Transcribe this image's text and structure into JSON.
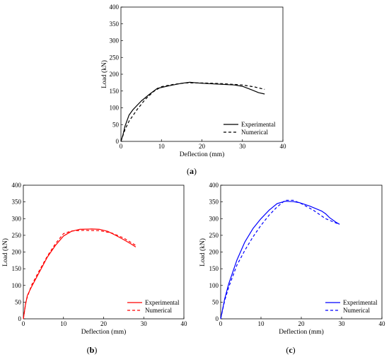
{
  "chart_data": [
    {
      "panel": "a",
      "caption": "(a)",
      "caption_letter": "a",
      "type": "line",
      "xlabel": "Deflection (mm)",
      "ylabel": "Load (kN)",
      "xlim": [
        0,
        40
      ],
      "ylim": [
        0,
        400
      ],
      "xticks": [
        "0",
        "10",
        "20",
        "30",
        "40"
      ],
      "yticks": [
        "0",
        "50",
        "100",
        "150",
        "200",
        "250",
        "300",
        "350",
        "400"
      ],
      "grid": false,
      "legend_position": "bottom-right",
      "series": [
        {
          "name": "Experimental",
          "style": "solid",
          "color": "#000000",
          "points": [
            [
              0,
              0
            ],
            [
              0.5,
              20
            ],
            [
              1,
              45
            ],
            [
              2,
              78
            ],
            [
              3,
              95
            ],
            [
              5,
              120
            ],
            [
              7,
              140
            ],
            [
              9,
              158
            ],
            [
              12,
              166
            ],
            [
              15,
              173
            ],
            [
              17,
              176
            ],
            [
              20,
              173
            ],
            [
              25,
              170
            ],
            [
              28,
              168
            ],
            [
              30,
              164
            ],
            [
              32,
              155
            ],
            [
              34,
              145
            ],
            [
              35.5,
              141
            ]
          ]
        },
        {
          "name": "Numerical",
          "style": "dashed",
          "color": "#000000",
          "points": [
            [
              0,
              0
            ],
            [
              1,
              35
            ],
            [
              2,
              60
            ],
            [
              4,
              95
            ],
            [
              6,
              125
            ],
            [
              8,
              148
            ],
            [
              10,
              163
            ],
            [
              13,
              170
            ],
            [
              16,
              174
            ],
            [
              20,
              174
            ],
            [
              25,
              172
            ],
            [
              30,
              168
            ],
            [
              33,
              162
            ],
            [
              35.5,
              155
            ]
          ]
        }
      ]
    },
    {
      "panel": "b",
      "caption": "(b)",
      "caption_letter": "b",
      "type": "line",
      "xlabel": "Deflection (mm)",
      "ylabel": "Load (kN)",
      "xlim": [
        0,
        40
      ],
      "ylim": [
        0,
        400
      ],
      "xticks": [
        "0",
        "10",
        "20",
        "30",
        "40"
      ],
      "yticks": [
        "0",
        "50",
        "100",
        "150",
        "200",
        "250",
        "300",
        "350",
        "400"
      ],
      "grid": false,
      "legend_position": "bottom-right",
      "series": [
        {
          "name": "Experimental",
          "style": "solid",
          "color": "#ff0000",
          "points": [
            [
              0,
              0
            ],
            [
              0.5,
              40
            ],
            [
              1,
              70
            ],
            [
              2,
              95
            ],
            [
              4,
              140
            ],
            [
              6,
              185
            ],
            [
              8,
              220
            ],
            [
              10,
              248
            ],
            [
              12,
              262
            ],
            [
              14,
              268
            ],
            [
              17,
              269
            ],
            [
              19,
              268
            ],
            [
              21,
              262
            ],
            [
              23,
              250
            ],
            [
              25,
              237
            ],
            [
              27,
              223
            ],
            [
              28,
              215
            ]
          ]
        },
        {
          "name": "Numerical",
          "style": "dashed",
          "color": "#ff0000",
          "points": [
            [
              0,
              0
            ],
            [
              0.7,
              55
            ],
            [
              2,
              100
            ],
            [
              4,
              145
            ],
            [
              6,
              188
            ],
            [
              8,
              225
            ],
            [
              10,
              255
            ],
            [
              12,
              263
            ],
            [
              15,
              265
            ],
            [
              19,
              264
            ],
            [
              22,
              257
            ],
            [
              25,
              242
            ],
            [
              28,
              220
            ]
          ]
        }
      ]
    },
    {
      "panel": "c",
      "caption": "(c)",
      "caption_letter": "c",
      "type": "line",
      "xlabel": "Deflection (mm)",
      "ylabel": "Load (kN)",
      "xlim": [
        0,
        40
      ],
      "ylim": [
        0,
        400
      ],
      "xticks": [
        "0",
        "10",
        "20",
        "30",
        "40"
      ],
      "yticks": [
        "0",
        "50",
        "100",
        "150",
        "200",
        "250",
        "300",
        "350",
        "400"
      ],
      "grid": false,
      "legend_position": "bottom-right",
      "series": [
        {
          "name": "Experimental",
          "style": "solid",
          "color": "#0000ff",
          "points": [
            [
              0,
              0
            ],
            [
              1,
              60
            ],
            [
              2,
              105
            ],
            [
              4,
              175
            ],
            [
              6,
              230
            ],
            [
              8,
              270
            ],
            [
              10,
              300
            ],
            [
              12,
              325
            ],
            [
              14,
              345
            ],
            [
              16,
              352
            ],
            [
              18,
              351
            ],
            [
              19.5,
              348
            ],
            [
              22,
              338
            ],
            [
              25,
              323
            ],
            [
              26,
              315
            ],
            [
              27,
              303
            ],
            [
              28.5,
              290
            ],
            [
              29.5,
              283
            ]
          ]
        },
        {
          "name": "Numerical",
          "style": "dashed",
          "color": "#0000ff",
          "points": [
            [
              0,
              0
            ],
            [
              1,
              55
            ],
            [
              2,
              95
            ],
            [
              4,
              160
            ],
            [
              6,
              205
            ],
            [
              8,
              245
            ],
            [
              10,
              280
            ],
            [
              12,
              310
            ],
            [
              14,
              335
            ],
            [
              16,
              355
            ],
            [
              18,
              355
            ],
            [
              20,
              345
            ],
            [
              23,
              325
            ],
            [
              26,
              300
            ],
            [
              29,
              285
            ]
          ]
        }
      ]
    }
  ]
}
